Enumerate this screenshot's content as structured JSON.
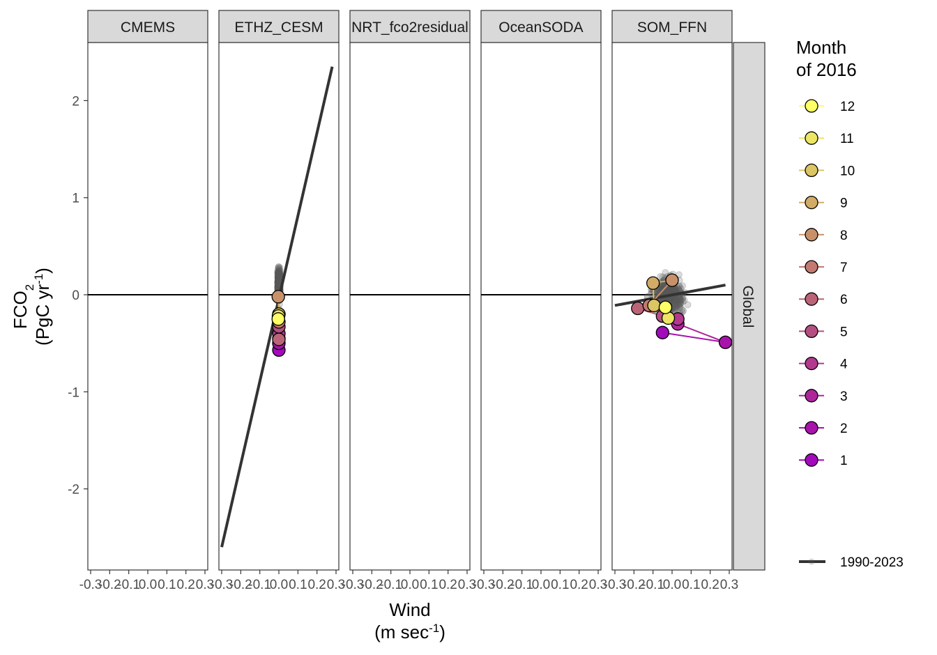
{
  "chart_data": {
    "type": "scatter",
    "facets": [
      "CMEMS",
      "ETHZ_CESM",
      "NRT_fco2residual",
      "OceanSODA",
      "SOM_FFN"
    ],
    "row_strip": "Global",
    "xlabel": "Wind",
    "xlabel_unit": "(m sec-1)",
    "ylabel": "FCO2",
    "ylabel_unit": "(PgC yr-1)",
    "xlim": [
      -0.3,
      0.3
    ],
    "ylim": [
      -2.8,
      2.5
    ],
    "x_ticks": [
      -0.3,
      -0.2,
      -0.1,
      0.0,
      0.1,
      0.2,
      0.3
    ],
    "x_tick_labels": [
      "-0.3",
      "-0.2",
      "-0.1",
      "0.0",
      "0.1",
      "0.2",
      "0.3"
    ],
    "y_ticks": [
      -2,
      -1,
      0,
      1,
      2
    ],
    "y_tick_labels": [
      "-2",
      "-1",
      "0",
      "1",
      "2"
    ],
    "hline": 0,
    "legend": {
      "title_line1": "Month",
      "title_line2": "of 2016",
      "months": [
        12,
        11,
        10,
        9,
        8,
        7,
        6,
        5,
        4,
        3,
        2,
        1
      ],
      "colors": [
        "#ffff66",
        "#ede664",
        "#dcc563",
        "#d2ab66",
        "#c9916a",
        "#c27a71",
        "#bb6478",
        "#b64f81",
        "#b2398d",
        "#ae259b",
        "#a813aa",
        "#a30abb"
      ],
      "line_label": "1990-2023"
    },
    "regression_lines": [
      {
        "facet": "ETHZ_CESM",
        "x": [
          -0.3,
          0.28
        ],
        "y": [
          -2.6,
          2.35
        ]
      },
      {
        "facet": "SOM_FFN",
        "x": [
          -0.3,
          0.28
        ],
        "y": [
          -0.11,
          0.1
        ]
      }
    ],
    "monthly_points": [
      {
        "facet": "ETHZ_CESM",
        "months": [
          1,
          2,
          3,
          4,
          5,
          6,
          7,
          8,
          9,
          10,
          11,
          12
        ],
        "x": [
          0.0,
          0.0,
          0.0,
          0.0,
          0.0,
          0.0,
          0.0,
          -0.003,
          0.0,
          0.0,
          -0.002,
          -0.003
        ],
        "y": [
          -0.57,
          -0.5,
          -0.45,
          -0.4,
          -0.33,
          -0.46,
          -0.28,
          -0.02,
          -0.2,
          -0.2,
          -0.22,
          -0.25
        ]
      },
      {
        "facet": "SOM_FFN",
        "months": [
          1,
          2,
          3,
          4,
          5,
          6,
          7,
          8,
          9,
          10,
          11,
          12
        ],
        "x": [
          -0.05,
          0.28,
          0.03,
          0.03,
          -0.05,
          -0.18,
          -0.12,
          0.0,
          -0.1,
          -0.095,
          -0.02,
          -0.035
        ],
        "y": [
          -0.39,
          -0.49,
          -0.3,
          -0.25,
          -0.22,
          -0.14,
          -0.11,
          0.15,
          0.12,
          -0.11,
          -0.24,
          -0.13
        ]
      }
    ],
    "background_points": {
      "ETHZ_CESM": {
        "x_range": [
          -0.01,
          0.01
        ],
        "y_range": [
          -0.5,
          0.58
        ],
        "count": 408
      },
      "SOM_FFN": {
        "x_range": [
          -0.3,
          0.28
        ],
        "y_range": [
          -0.43,
          0.66
        ],
        "count": 408
      }
    }
  }
}
